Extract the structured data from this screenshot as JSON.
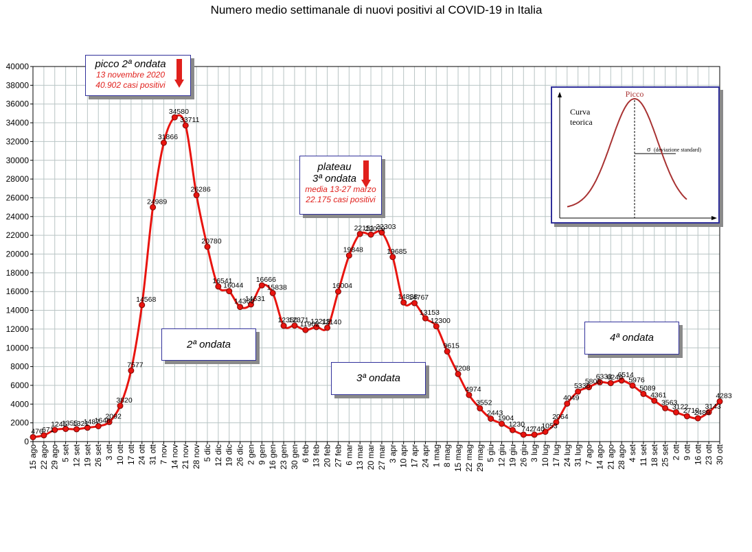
{
  "chart_data": {
    "type": "line",
    "title": "Numero medio settimanale di nuovi positivi al COVID-19 in Italia",
    "xlabel": "",
    "ylabel": "",
    "ylim": [
      0,
      40000
    ],
    "ytick_step": 2000,
    "grid": true,
    "x": [
      "15 ago",
      "22 ago",
      "29 ago",
      "5 set",
      "12 set",
      "19 set",
      "26 set",
      "3 ott",
      "10 ott",
      "17 ott",
      "24 ott",
      "31 ott",
      "7 nov",
      "14 nov",
      "21 nov",
      "28 nov",
      "5 dic",
      "12 dic",
      "19 dic",
      "26 dic",
      "2 gen",
      "9 gen",
      "16 gen",
      "23 gen",
      "30 gen",
      "6 feb",
      "13 feb",
      "20 feb",
      "27 feb",
      "6 mar",
      "13 mar",
      "20 mar",
      "27 mar",
      "3 apr",
      "10 apr",
      "17 apr",
      "24 apr",
      "1 mag",
      "8 mag",
      "15 mag",
      "22 mag",
      "29 mag",
      "5 giu",
      "12 giu",
      "19 giu",
      "26 giu",
      "3 lug",
      "10 lug",
      "17 lug",
      "24 lug",
      "31 lug",
      "7 ago",
      "14 ago",
      "21 ago",
      "28 ago",
      "4 set",
      "11 set",
      "18 set",
      "25 set",
      "2 ott",
      "9 ott",
      "16 ott",
      "23 ott",
      "30 ott"
    ],
    "series": [
      {
        "values": [
          476,
          671,
          1245,
          1355,
          1321,
          1487,
          1648,
          2092,
          3820,
          7577,
          14568,
          24989,
          31866,
          34580,
          33711,
          26286,
          20780,
          16541,
          16044,
          14360,
          14631,
          16666,
          15838,
          12350,
          12371,
          11902,
          12219,
          12140,
          16004,
          19848,
          22151,
          22079,
          22303,
          19685,
          14838,
          14767,
          13153,
          12300,
          9615,
          7208,
          4974,
          3552,
          2443,
          1904,
          1230,
          742,
          740,
          1053,
          2064,
          4049,
          5336,
          5808,
          6333,
          6240,
          6514,
          5976,
          5089,
          4361,
          3563,
          3122,
          2710,
          2489,
          3143,
          4283
        ]
      }
    ],
    "labels": [
      "476",
      "671",
      "1245",
      "1355",
      "1321",
      "1487",
      "1648",
      "2092",
      "3820",
      "7577",
      "14568",
      "24989",
      "31866",
      "34580",
      "33711",
      "26286",
      "20780",
      "16541",
      "16044",
      "14360",
      "14631",
      "16666",
      "15838",
      "12350",
      "12371",
      "11902",
      "12219",
      "12140",
      "16004",
      "19848",
      "22151",
      "22079",
      "22303",
      "19685",
      "14838",
      "14767",
      "13153",
      "12300",
      "9615",
      "7208",
      "4974",
      "3552",
      "2443",
      "1904",
      "1230",
      "742",
      "740",
      "1053",
      "2064",
      "4049",
      "5336",
      "5808",
      "6333",
      "6240",
      "6514",
      "5976",
      "5089",
      "4361",
      "3563",
      "3122",
      "2710",
      "2489",
      "3143",
      "4283"
    ],
    "annotations": {
      "peak": {
        "title": "picco 2ª ondata",
        "line1": "13 novembre 2020",
        "line2": "40.902 casi positivi"
      },
      "plateau": {
        "title1": "plateau",
        "title2": "3ª ondata",
        "line1": "media 13-27 marzo",
        "line2": "22.175 casi positivi"
      },
      "wave2": "2ª ondata",
      "wave3": "3ª ondata",
      "wave4": "4ª ondata"
    },
    "inset": {
      "peak_label": "Picco",
      "curve_label_1": "Curva",
      "curve_label_2": "teorica",
      "sigma_label": "σ",
      "sigma_text": "(deviazione standard)"
    },
    "colors": {
      "line": "#e8140f",
      "marker": "#e8140f",
      "grid": "#b8c4c4",
      "frame": "#2f2f9a",
      "annot_red": "#e0201c",
      "inset_curve": "#a83232"
    }
  }
}
